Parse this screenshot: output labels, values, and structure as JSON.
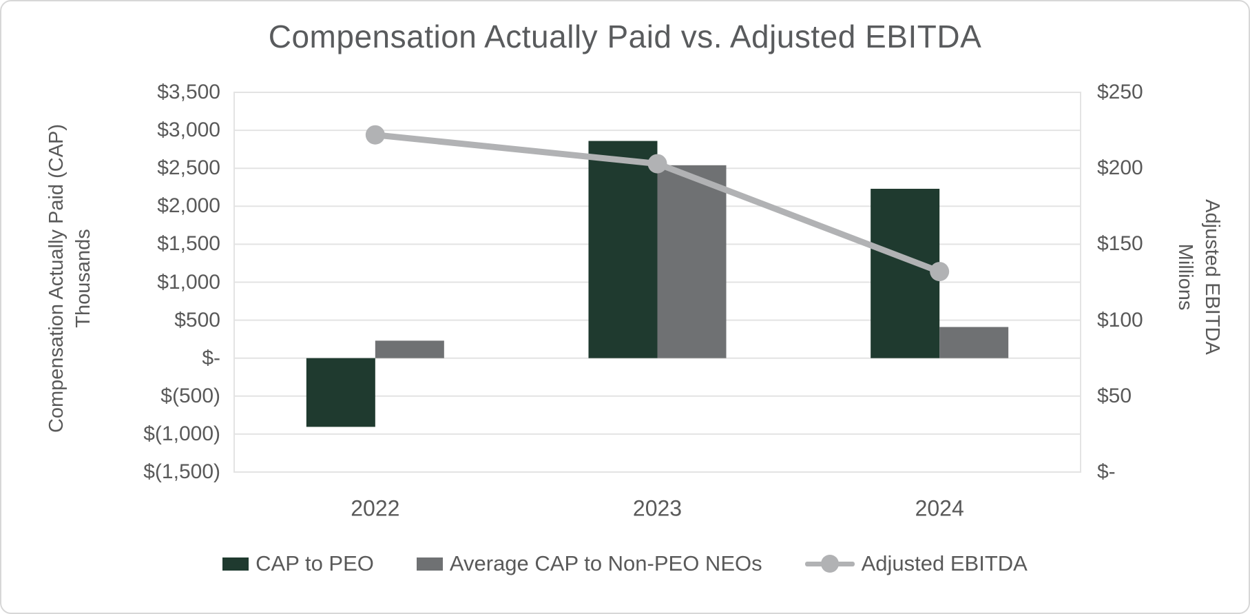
{
  "title": "Compensation Actually Paid vs. Adjusted EBITDA",
  "left_axis": {
    "title_line1": "Compensation Actually Paid (CAP)",
    "title_line2": "Thousands",
    "ticks": [
      "$3,500",
      "$3,000",
      "$2,500",
      "$2,000",
      "$1,500",
      "$1,000",
      "$500",
      "$-",
      "$(500)",
      "$(1,000)",
      "$(1,500)"
    ],
    "min": -1500,
    "max": 3500,
    "step": 500
  },
  "right_axis": {
    "title_line1": "Adjusted EBITDA",
    "title_line2": "Millions",
    "ticks": [
      "$250",
      "$200",
      "$150",
      "$100",
      "$50",
      "$-"
    ],
    "min": 0,
    "max": 250,
    "step": 50
  },
  "x_axis": {
    "categories": [
      "2022",
      "2023",
      "2024"
    ]
  },
  "legend": [
    {
      "label": "CAP to PEO",
      "type": "bar",
      "color": "#1f3a2f"
    },
    {
      "label": "Average CAP to Non-PEO NEOs",
      "type": "bar",
      "color": "#6f7173"
    },
    {
      "label": "Adjusted EBITDA",
      "type": "line",
      "color": "#b1b2b4"
    }
  ],
  "colors": {
    "peo_bar": "#1f3a2f",
    "neo_bar": "#6f7173",
    "ebitda_line": "#b1b2b4",
    "text": "#595959",
    "title_text": "#595b5d",
    "gridline": "#e3e3e3",
    "plot_border": "#e3e3e3",
    "canvas_border": "#d7d7d7"
  },
  "chart_data": {
    "type": "bar+line combo, dual axis",
    "title": "Compensation Actually Paid vs. Adjusted EBITDA",
    "categories": [
      "2022",
      "2023",
      "2024"
    ],
    "series": [
      {
        "name": "CAP to PEO",
        "type": "bar",
        "axis": "left",
        "color": "#1f3a2f",
        "values": [
          -905,
          2860,
          2230
        ]
      },
      {
        "name": "Average CAP to Non-PEO NEOs",
        "type": "bar",
        "axis": "left",
        "color": "#6f7173",
        "values": [
          230,
          2540,
          410
        ]
      },
      {
        "name": "Adjusted EBITDA",
        "type": "line",
        "axis": "right",
        "color": "#b1b2b4",
        "values": [
          222,
          203,
          132
        ]
      }
    ],
    "left_axis_label": "Compensation Actually Paid (CAP) Thousands",
    "right_axis_label": "Adjusted EBITDA Millions",
    "left_ylim": [
      -1500,
      3500
    ],
    "left_major_unit": 500,
    "right_ylim": [
      0,
      250
    ],
    "right_major_unit": 50,
    "grid": "horizontal gridlines on, plot area bordered",
    "legend_position": "bottom"
  }
}
